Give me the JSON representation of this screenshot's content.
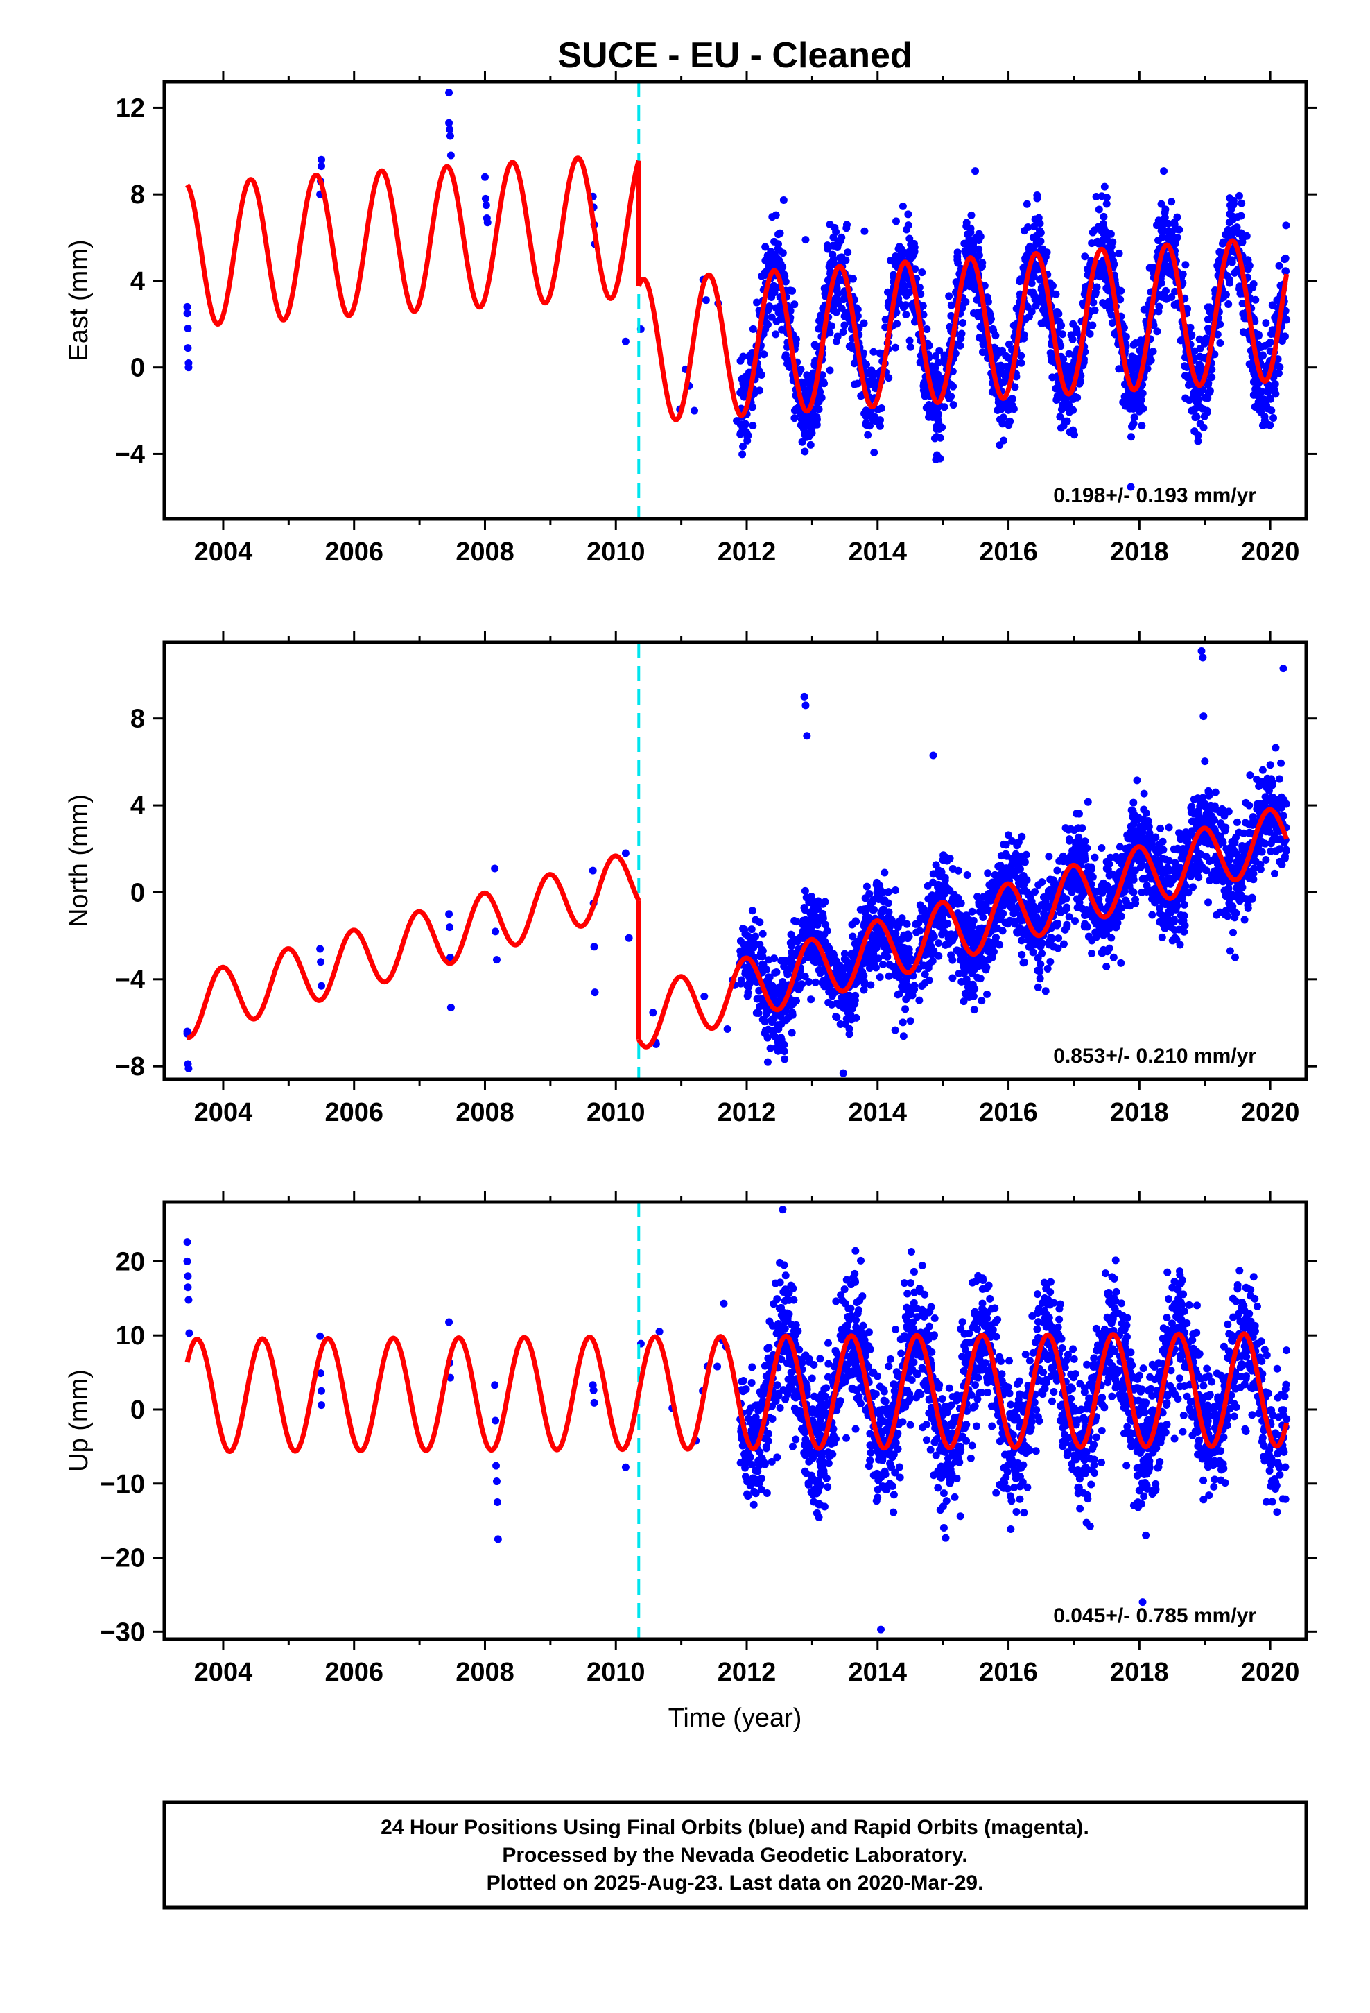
{
  "title": "SUCE  - EU - Cleaned",
  "xlabel": "Time (year)",
  "footer": {
    "line1": "24 Hour Positions Using Final Orbits (blue) and Rapid Orbits (magenta).",
    "line2": "Processed by the Nevada Geodetic Laboratory.",
    "line3": "Plotted on 2025-Aug-23. Last data on 2020-Mar-29."
  },
  "colors": {
    "points": "#0000ff",
    "model": "#ff0000",
    "break_line": "#00e5ee",
    "frame": "#000000"
  },
  "chart_data": [
    {
      "type": "scatter",
      "ylabel": "East (mm)",
      "rate_label": "0.198+/- 0.193 mm/yr",
      "xlim": [
        2003.1,
        2020.55
      ],
      "ylim": [
        -7,
        13.2
      ],
      "xticks": [
        2004,
        2006,
        2008,
        2010,
        2012,
        2014,
        2016,
        2018,
        2020
      ],
      "yticks": [
        12,
        8,
        4,
        0,
        -4
      ],
      "break_year": 2010.35,
      "model": {
        "seg1": {
          "x0": 2003.45,
          "x1": 2010.35,
          "offset": 5.2,
          "slope": 0.198,
          "amp": 3.3,
          "phase_year": 2003.42
        },
        "seg2": {
          "x0": 2010.35,
          "x1": 2020.25,
          "offset": -0.6,
          "slope": 0.198,
          "amp": 3.3,
          "phase_year": 2003.42
        }
      },
      "early_points": [
        [
          2003.45,
          2.8
        ],
        [
          2003.45,
          2.5
        ],
        [
          2003.46,
          1.8
        ],
        [
          2003.46,
          0.9
        ],
        [
          2003.47,
          0.2
        ],
        [
          2003.47,
          0.0
        ],
        [
          2005.48,
          8.0
        ],
        [
          2005.49,
          8.6
        ],
        [
          2005.5,
          9.6
        ],
        [
          2005.5,
          9.3
        ],
        [
          2007.45,
          12.7
        ],
        [
          2007.45,
          11.3
        ],
        [
          2007.46,
          11.0
        ],
        [
          2007.47,
          10.7
        ],
        [
          2007.48,
          9.8
        ],
        [
          2008.0,
          8.8
        ],
        [
          2008.01,
          7.8
        ],
        [
          2008.02,
          7.5
        ],
        [
          2008.03,
          6.9
        ],
        [
          2008.04,
          6.7
        ],
        [
          2009.65,
          7.9
        ],
        [
          2009.66,
          7.4
        ],
        [
          2009.67,
          6.6
        ],
        [
          2009.68,
          5.7
        ],
        [
          2010.15,
          1.2
        ],
        [
          2011.2,
          -2.0
        ],
        [
          2013.8,
          6.3
        ],
        [
          2012.9,
          5.9
        ]
      ],
      "scatter": {
        "x_start": 2011.9,
        "x_end": 2020.25,
        "n": 2400,
        "sd": 1.15
      },
      "sparse": {
        "x_start": 2010.35,
        "x_end": 2011.9,
        "n": 8,
        "sd": 0.8
      }
    },
    {
      "type": "scatter",
      "ylabel": "North (mm)",
      "rate_label": "0.853+/- 0.210 mm/yr",
      "xlim": [
        2003.1,
        2020.55
      ],
      "ylim": [
        -8.6,
        11.5
      ],
      "xticks": [
        2004,
        2006,
        2008,
        2010,
        2012,
        2014,
        2016,
        2018,
        2020
      ],
      "yticks": [
        8,
        4,
        0,
        -4,
        -8
      ],
      "break_year": 2010.35,
      "model": {
        "seg1": {
          "x0": 2003.45,
          "x1": 2010.35,
          "offset": -5.3,
          "slope": 0.853,
          "amp": 1.4,
          "phase_year": 2003.98
        },
        "seg2": {
          "x0": 2010.35,
          "x1": 2020.25,
          "offset": -11.7,
          "slope": 0.853,
          "amp": 1.4,
          "phase_year": 2003.98
        }
      },
      "early_points": [
        [
          2003.45,
          -6.4
        ],
        [
          2003.45,
          -6.5
        ],
        [
          2003.46,
          -7.9
        ],
        [
          2003.47,
          -8.1
        ],
        [
          2005.48,
          -2.6
        ],
        [
          2005.49,
          -3.2
        ],
        [
          2005.5,
          -4.3
        ],
        [
          2007.45,
          -1.0
        ],
        [
          2007.46,
          -1.6
        ],
        [
          2007.47,
          -3.0
        ],
        [
          2007.48,
          -5.3
        ],
        [
          2008.15,
          1.1
        ],
        [
          2008.16,
          -1.8
        ],
        [
          2008.18,
          -3.1
        ],
        [
          2009.65,
          1.0
        ],
        [
          2009.66,
          -0.5
        ],
        [
          2009.67,
          -2.5
        ],
        [
          2009.68,
          -4.6
        ],
        [
          2010.15,
          1.8
        ],
        [
          2010.2,
          -2.1
        ],
        [
          2012.88,
          9.0
        ],
        [
          2012.9,
          8.6
        ],
        [
          2012.92,
          7.2
        ],
        [
          2014.85,
          6.3
        ],
        [
          2018.95,
          11.1
        ],
        [
          2018.97,
          10.8
        ],
        [
          2018.98,
          8.1
        ],
        [
          2020.2,
          10.3
        ]
      ],
      "scatter": {
        "x_start": 2011.9,
        "x_end": 2020.25,
        "n": 2400,
        "sd": 1.1
      },
      "sparse": {
        "x_start": 2010.35,
        "x_end": 2011.9,
        "n": 8,
        "sd": 0.8
      }
    },
    {
      "type": "scatter",
      "ylabel": "Up (mm)",
      "rate_label": "0.045+/- 0.785 mm/yr",
      "xlim": [
        2003.1,
        2020.55
      ],
      "ylim": [
        -31,
        28
      ],
      "xticks": [
        2004,
        2006,
        2008,
        2010,
        2012,
        2014,
        2016,
        2018,
        2020
      ],
      "yticks": [
        20,
        10,
        0,
        -10,
        -20,
        -30
      ],
      "break_year": 2010.35,
      "model": {
        "seg1": {
          "x0": 2003.45,
          "x1": 2010.35,
          "offset": 1.9,
          "slope": 0.045,
          "amp": 7.6,
          "phase_year": 2003.6
        },
        "seg2": {
          "x0": 2010.35,
          "x1": 2020.25,
          "offset": 1.9,
          "slope": 0.045,
          "amp": 7.6,
          "phase_year": 2003.6
        }
      },
      "early_points": [
        [
          2003.45,
          22.6
        ],
        [
          2003.45,
          20.0
        ],
        [
          2003.46,
          18.0
        ],
        [
          2003.46,
          16.5
        ],
        [
          2003.47,
          14.8
        ],
        [
          2003.48,
          10.3
        ],
        [
          2005.48,
          9.9
        ],
        [
          2005.49,
          4.9
        ],
        [
          2005.5,
          2.5
        ],
        [
          2005.5,
          0.6
        ],
        [
          2007.45,
          11.8
        ],
        [
          2007.46,
          6.3
        ],
        [
          2007.47,
          4.3
        ],
        [
          2008.15,
          3.3
        ],
        [
          2008.16,
          -1.5
        ],
        [
          2008.17,
          -7.6
        ],
        [
          2008.18,
          -9.7
        ],
        [
          2008.19,
          -12.5
        ],
        [
          2008.2,
          -17.5
        ],
        [
          2009.65,
          3.3
        ],
        [
          2009.66,
          2.6
        ],
        [
          2009.67,
          0.9
        ],
        [
          2010.15,
          -7.8
        ],
        [
          2011.65,
          14.3
        ],
        [
          2011.55,
          5.8
        ],
        [
          2012.55,
          27.0
        ],
        [
          2014.05,
          -29.7
        ],
        [
          2018.05,
          -26.0
        ]
      ],
      "scatter": {
        "x_start": 2011.9,
        "x_end": 2020.25,
        "n": 2400,
        "sd": 4.4
      },
      "sparse": {
        "x_start": 2010.35,
        "x_end": 2011.9,
        "n": 8,
        "sd": 3.0
      }
    }
  ]
}
